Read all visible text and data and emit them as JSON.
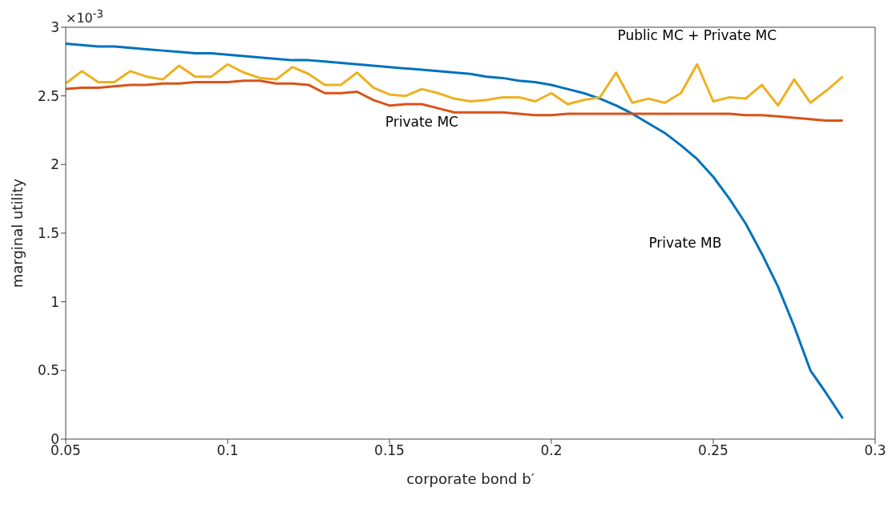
{
  "chart_data": {
    "type": "line",
    "xlabel": "corporate bond b′",
    "ylabel": "marginal utility",
    "x": [
      0.05,
      0.055,
      0.06,
      0.065,
      0.07,
      0.075,
      0.08,
      0.085,
      0.09,
      0.095,
      0.1,
      0.105,
      0.11,
      0.115,
      0.12,
      0.125,
      0.13,
      0.135,
      0.14,
      0.145,
      0.15,
      0.155,
      0.16,
      0.165,
      0.17,
      0.175,
      0.18,
      0.185,
      0.19,
      0.195,
      0.2,
      0.205,
      0.21,
      0.215,
      0.22,
      0.225,
      0.23,
      0.235,
      0.24,
      0.245,
      0.25,
      0.255,
      0.26,
      0.265,
      0.27,
      0.275,
      0.28,
      0.285,
      0.29
    ],
    "series": [
      {
        "name": "Private MB",
        "color": "#0072bd",
        "values": [
          2.88,
          2.87,
          2.86,
          2.86,
          2.85,
          2.84,
          2.83,
          2.82,
          2.81,
          2.81,
          2.8,
          2.79,
          2.78,
          2.77,
          2.76,
          2.76,
          2.75,
          2.74,
          2.73,
          2.72,
          2.71,
          2.7,
          2.69,
          2.68,
          2.67,
          2.66,
          2.64,
          2.63,
          2.61,
          2.6,
          2.58,
          2.55,
          2.52,
          2.48,
          2.43,
          2.37,
          2.3,
          2.23,
          2.14,
          2.04,
          1.91,
          1.75,
          1.57,
          1.35,
          1.11,
          0.82,
          0.5,
          0.33,
          0.15
        ]
      },
      {
        "name": "Private MC",
        "color": "#d95319",
        "values": [
          2.55,
          2.56,
          2.56,
          2.57,
          2.58,
          2.58,
          2.59,
          2.59,
          2.6,
          2.6,
          2.6,
          2.61,
          2.61,
          2.59,
          2.59,
          2.58,
          2.52,
          2.52,
          2.53,
          2.47,
          2.43,
          2.44,
          2.44,
          2.41,
          2.38,
          2.38,
          2.38,
          2.38,
          2.37,
          2.36,
          2.36,
          2.37,
          2.37,
          2.37,
          2.37,
          2.37,
          2.37,
          2.37,
          2.37,
          2.37,
          2.37,
          2.37,
          2.36,
          2.36,
          2.35,
          2.34,
          2.33,
          2.32,
          2.32
        ]
      },
      {
        "name": "Public MC + Private MC",
        "color": "#edb120",
        "values": [
          2.59,
          2.68,
          2.6,
          2.6,
          2.68,
          2.64,
          2.62,
          2.72,
          2.64,
          2.64,
          2.73,
          2.67,
          2.63,
          2.62,
          2.71,
          2.66,
          2.58,
          2.58,
          2.67,
          2.56,
          2.51,
          2.5,
          2.55,
          2.52,
          2.48,
          2.46,
          2.47,
          2.49,
          2.49,
          2.46,
          2.52,
          2.44,
          2.47,
          2.49,
          2.67,
          2.45,
          2.48,
          2.45,
          2.52,
          2.73,
          2.46,
          2.49,
          2.48,
          2.58,
          2.43,
          2.62,
          2.45,
          2.54,
          2.64
        ]
      }
    ],
    "xlim": [
      0.05,
      0.3
    ],
    "xticks": [
      0.05,
      0.1,
      0.15,
      0.2,
      0.25,
      0.3
    ],
    "ylim": [
      0,
      3
    ],
    "yticks": [
      0,
      0.5,
      1,
      1.5,
      2,
      2.5,
      3
    ],
    "annotations": [
      "×10$^{-3}$"
    ],
    "grid": false,
    "legend": false,
    "marker": "none",
    "line_style": "solid"
  }
}
